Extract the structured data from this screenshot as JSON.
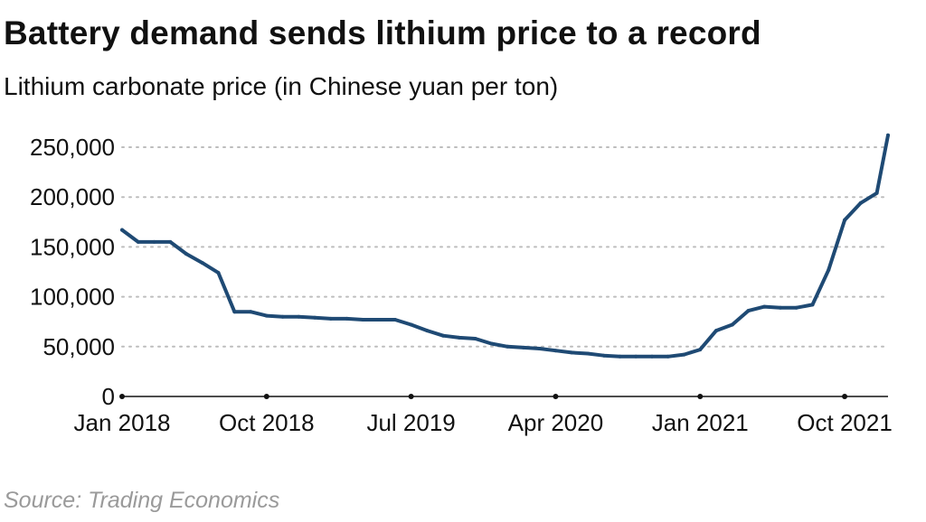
{
  "header": {
    "title": "Battery demand sends lithium price to a record",
    "subtitle": "Lithium carbonate price (in Chinese yuan per ton)"
  },
  "footer": {
    "source": "Source: Trading Economics"
  },
  "colors": {
    "line": "#1f4a74",
    "grid": "#bdbdbd",
    "axis": "#111111",
    "source_text": "#9a9a9a"
  },
  "chart_data": {
    "type": "line",
    "title": "Battery demand sends lithium price to a record",
    "subtitle": "Lithium carbonate price (in Chinese yuan per ton)",
    "xlabel": "",
    "ylabel": "",
    "ylim": [
      0,
      250000
    ],
    "xlim": [
      0,
      47.7
    ],
    "x_unit": "months since Jan 2018",
    "grid": "horizontal dotted",
    "y_ticks": [
      {
        "value": 0,
        "label": "0"
      },
      {
        "value": 50000,
        "label": "50,000"
      },
      {
        "value": 100000,
        "label": "100,000"
      },
      {
        "value": 150000,
        "label": "150,000"
      },
      {
        "value": 200000,
        "label": "200,000"
      },
      {
        "value": 250000,
        "label": "250,000"
      }
    ],
    "x_ticks": [
      {
        "value": 0,
        "label": "Jan 2018"
      },
      {
        "value": 9,
        "label": "Oct 2018"
      },
      {
        "value": 18,
        "label": "Jul 2019"
      },
      {
        "value": 27,
        "label": "Apr 2020"
      },
      {
        "value": 36,
        "label": "Jan 2021"
      },
      {
        "value": 45,
        "label": "Oct 2021"
      }
    ],
    "series": [
      {
        "name": "Lithium carbonate price",
        "points": [
          [
            0,
            167000
          ],
          [
            1,
            155000
          ],
          [
            2,
            155000
          ],
          [
            3,
            155000
          ],
          [
            4,
            143000
          ],
          [
            5,
            134000
          ],
          [
            6,
            124000
          ],
          [
            7,
            85000
          ],
          [
            8,
            85000
          ],
          [
            9,
            81000
          ],
          [
            10,
            80000
          ],
          [
            11,
            80000
          ],
          [
            12,
            79000
          ],
          [
            13,
            78000
          ],
          [
            14,
            78000
          ],
          [
            15,
            77000
          ],
          [
            16,
            77000
          ],
          [
            17,
            77000
          ],
          [
            18,
            72000
          ],
          [
            19,
            66000
          ],
          [
            20,
            61000
          ],
          [
            21,
            59000
          ],
          [
            22,
            58000
          ],
          [
            23,
            53000
          ],
          [
            24,
            50000
          ],
          [
            25,
            49000
          ],
          [
            26,
            48000
          ],
          [
            27,
            46000
          ],
          [
            28,
            44000
          ],
          [
            29,
            43000
          ],
          [
            30,
            41000
          ],
          [
            31,
            40000
          ],
          [
            32,
            40000
          ],
          [
            33,
            40000
          ],
          [
            34,
            40000
          ],
          [
            35,
            42000
          ],
          [
            36,
            47000
          ],
          [
            37,
            66000
          ],
          [
            38,
            72000
          ],
          [
            39,
            86000
          ],
          [
            40,
            90000
          ],
          [
            41,
            89000
          ],
          [
            42,
            89000
          ],
          [
            43,
            92000
          ],
          [
            44,
            127000
          ],
          [
            45,
            177000
          ],
          [
            46,
            194000
          ],
          [
            47,
            204000
          ],
          [
            47.7,
            262000
          ]
        ]
      }
    ]
  }
}
